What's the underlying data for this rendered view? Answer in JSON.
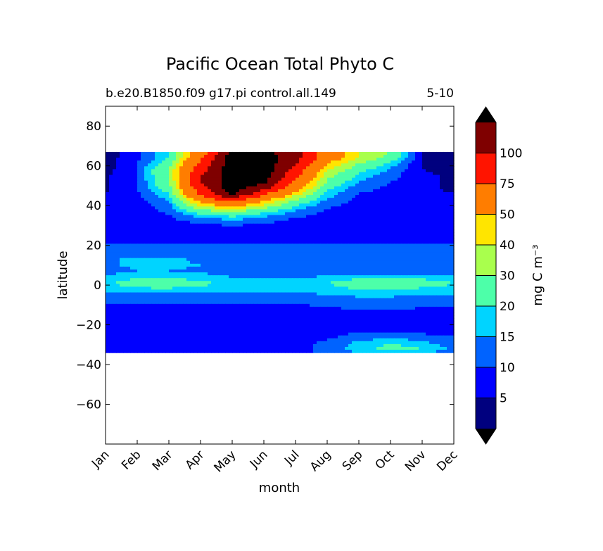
{
  "chart_data": {
    "type": "heatmap",
    "title": "Pacific Ocean Total Phyto C",
    "subtitle_left": "b.e20.B1850.f09 g17.pi control.all.149",
    "subtitle_right": "5-10",
    "xlabel": "month",
    "ylabel": "latitude",
    "x_ticks": [
      "Jan",
      "Feb",
      "Mar",
      "Apr",
      "May",
      "Jun",
      "Jul",
      "Aug",
      "Sep",
      "Oct",
      "Nov",
      "Dec"
    ],
    "xlim": [
      0,
      11
    ],
    "ylim": [
      -80,
      90
    ],
    "y_ticks": [
      80,
      60,
      40,
      20,
      0,
      -20,
      -40,
      -60
    ],
    "y_tick_labels": [
      "80",
      "60",
      "40",
      "20",
      "0",
      "−20",
      "−40",
      "−60"
    ],
    "data_lat_range": [
      -34,
      67
    ],
    "colorbar": {
      "label": "mg C m⁻³",
      "levels": [
        0,
        5,
        10,
        15,
        20,
        30,
        40,
        50,
        75,
        100,
        125
      ],
      "tick_labels": [
        "5",
        "10",
        "15",
        "20",
        "30",
        "40",
        "50",
        "75",
        "100"
      ],
      "colors": [
        "#00007f",
        "#0000ff",
        "#0063ff",
        "#00d4ff",
        "#4dffa9",
        "#a9ff4d",
        "#ffe500",
        "#ff7d00",
        "#ff1400",
        "#7f0000"
      ],
      "under_color": "#000080",
      "over_color": "#000000",
      "extend": "both"
    },
    "lat": [
      67,
      64,
      61,
      58,
      55,
      52,
      49,
      46,
      43,
      40,
      37,
      34,
      31,
      28,
      25,
      22,
      19,
      16,
      13,
      10,
      7,
      4,
      1,
      -2,
      -5,
      -8,
      -11,
      -14,
      -17,
      -20,
      -23,
      -26,
      -29,
      -32,
      -34
    ],
    "months": [
      0,
      1,
      2,
      3,
      4,
      5,
      6,
      7,
      8,
      9,
      10,
      11
    ],
    "values": [
      [
        3,
        8,
        20,
        60,
        130,
        130,
        110,
        60,
        40,
        30,
        5,
        3
      ],
      [
        3,
        8,
        20,
        70,
        140,
        140,
        110,
        60,
        40,
        25,
        5,
        3
      ],
      [
        3,
        10,
        25,
        80,
        140,
        140,
        100,
        50,
        30,
        18,
        5,
        3
      ],
      [
        3,
        10,
        30,
        90,
        140,
        140,
        90,
        40,
        22,
        14,
        5,
        3
      ],
      [
        4,
        10,
        30,
        100,
        140,
        140,
        80,
        33,
        18,
        12,
        6,
        4
      ],
      [
        4,
        10,
        28,
        100,
        140,
        130,
        70,
        28,
        15,
        10,
        6,
        4
      ],
      [
        4,
        10,
        25,
        90,
        140,
        110,
        60,
        22,
        12,
        9,
        6,
        4
      ],
      [
        5,
        9,
        20,
        80,
        130,
        80,
        45,
        18,
        10,
        8,
        6,
        5
      ],
      [
        5,
        8,
        16,
        60,
        90,
        55,
        30,
        14,
        9,
        7,
        6,
        5
      ],
      [
        5,
        7,
        13,
        40,
        55,
        38,
        20,
        11,
        8,
        7,
        6,
        5
      ],
      [
        6,
        7,
        11,
        25,
        32,
        22,
        14,
        9,
        7,
        6,
        6,
        6
      ],
      [
        6,
        7,
        9,
        15,
        18,
        14,
        10,
        8,
        7,
        6,
        6,
        6
      ],
      [
        6,
        6,
        8,
        10,
        11,
        10,
        8,
        7,
        6,
        6,
        6,
        6
      ],
      [
        7,
        7,
        7,
        8,
        8,
        8,
        7,
        7,
        7,
        7,
        7,
        7
      ],
      [
        8,
        8,
        8,
        8,
        8,
        8,
        8,
        8,
        8,
        8,
        8,
        8
      ],
      [
        9,
        9,
        9,
        9,
        9,
        9,
        9,
        9,
        9,
        9,
        9,
        9
      ],
      [
        11,
        11,
        11,
        11,
        11,
        11,
        11,
        11,
        11,
        11,
        11,
        11
      ],
      [
        12,
        13,
        13,
        12,
        12,
        11,
        11,
        11,
        11,
        11,
        11,
        11
      ],
      [
        14,
        16,
        16,
        14,
        12,
        12,
        12,
        12,
        12,
        12,
        12,
        12
      ],
      [
        14,
        16,
        16,
        15,
        13,
        12,
        12,
        12,
        12,
        12,
        12,
        12
      ],
      [
        13,
        15,
        15,
        14,
        13,
        12,
        12,
        12,
        12,
        12,
        12,
        12
      ],
      [
        16,
        18,
        18,
        17,
        15,
        14,
        14,
        16,
        18,
        18,
        17,
        16
      ],
      [
        18,
        25,
        26,
        22,
        18,
        17,
        17,
        20,
        25,
        26,
        25,
        20
      ],
      [
        17,
        19,
        19,
        18,
        17,
        16,
        16,
        18,
        20,
        20,
        19,
        18
      ],
      [
        14,
        14,
        14,
        14,
        13,
        13,
        13,
        15,
        16,
        16,
        15,
        15
      ],
      [
        11,
        11,
        11,
        11,
        11,
        11,
        11,
        12,
        13,
        13,
        12,
        12
      ],
      [
        9,
        9,
        9,
        9,
        9,
        9,
        9,
        10,
        11,
        11,
        10,
        10
      ],
      [
        8,
        8,
        8,
        8,
        8,
        8,
        8,
        8,
        9,
        9,
        9,
        9
      ],
      [
        8,
        8,
        8,
        8,
        8,
        8,
        8,
        8,
        8,
        9,
        9,
        9
      ],
      [
        8,
        8,
        8,
        8,
        8,
        8,
        8,
        8,
        8,
        9,
        9,
        9
      ],
      [
        8,
        8,
        8,
        8,
        8,
        8,
        8,
        8,
        9,
        9,
        9,
        9
      ],
      [
        8,
        8,
        8,
        8,
        8,
        8,
        8,
        9,
        12,
        13,
        11,
        10
      ],
      [
        8,
        8,
        8,
        8,
        8,
        8,
        8,
        11,
        16,
        20,
        16,
        12
      ],
      [
        8,
        8,
        8,
        8,
        8,
        8,
        8,
        12,
        18,
        22,
        20,
        14
      ],
      [
        8,
        8,
        8,
        8,
        8,
        8,
        8,
        11,
        15,
        18,
        15,
        12
      ]
    ],
    "grid": false
  }
}
